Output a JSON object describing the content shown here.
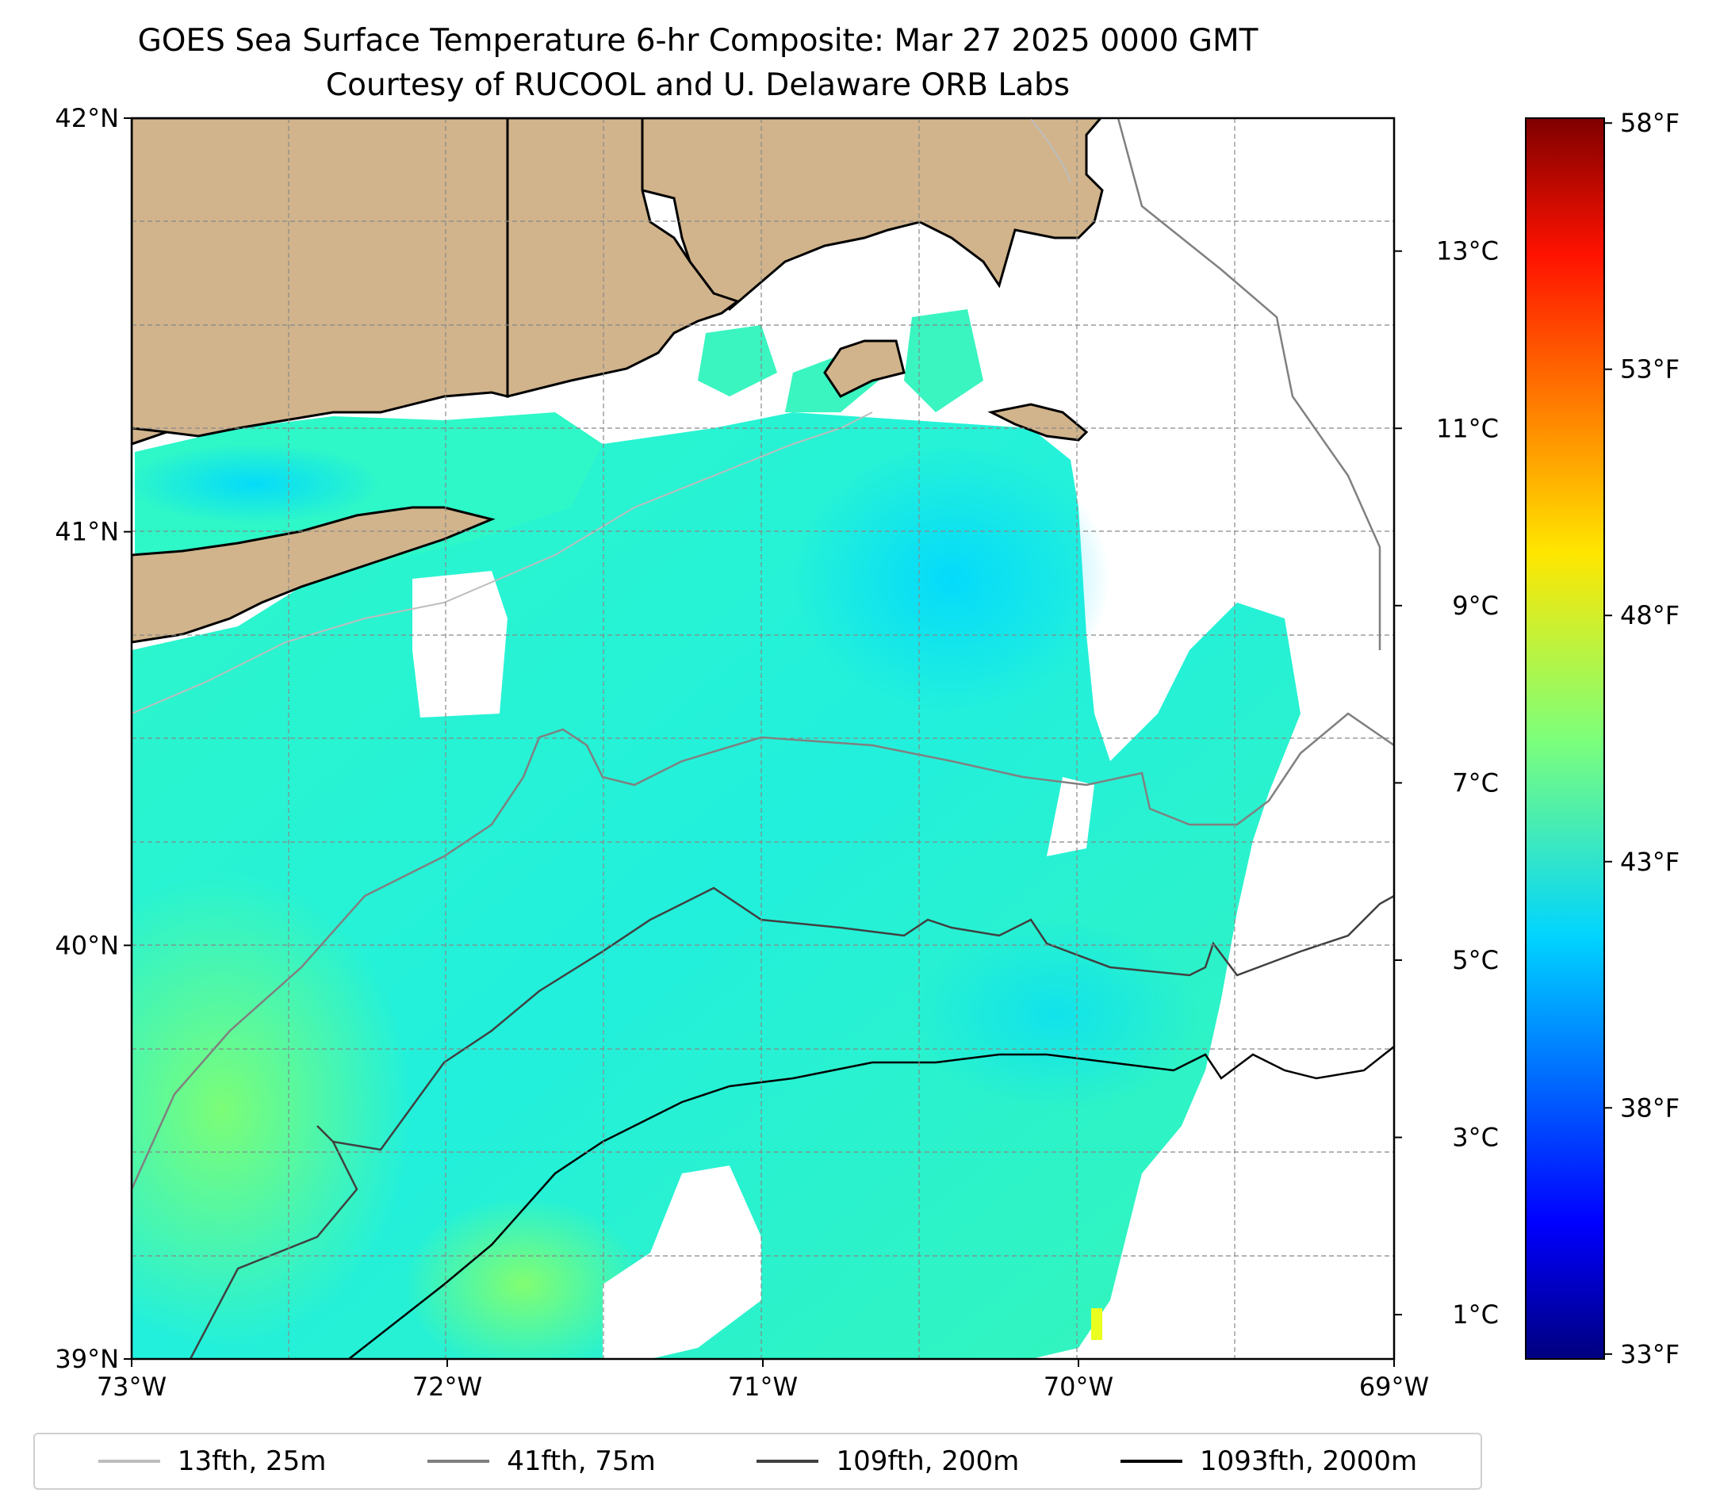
{
  "title": {
    "line1": "GOES Sea Surface Temperature 6-hr Composite: Mar 27 2025 0000 GMT",
    "line2": "Courtesy of RUCOOL and U. Delaware ORB Labs"
  },
  "map": {
    "lon_range": [
      -73,
      -69
    ],
    "lat_range": [
      39,
      42
    ],
    "lon_ticks": [
      {
        "value": -73,
        "label": "73°W"
      },
      {
        "value": -72,
        "label": "72°W"
      },
      {
        "value": -71,
        "label": "71°W"
      },
      {
        "value": -70,
        "label": "70°W"
      },
      {
        "value": -69,
        "label": "69°W"
      }
    ],
    "lat_ticks": [
      {
        "value": 42,
        "label": "42°N"
      },
      {
        "value": 41,
        "label": "41°N"
      },
      {
        "value": 40,
        "label": "40°N"
      },
      {
        "value": 39,
        "label": "39°N"
      }
    ],
    "grid": "dashed",
    "land_color": "#d1b48c",
    "no_data_color": "#ffffff"
  },
  "colorbar": {
    "colormap": "jet",
    "celsius_range": [
      0.5,
      14.5
    ],
    "celsius_ticks": [
      {
        "value": 1,
        "label": "1°C"
      },
      {
        "value": 3,
        "label": "3°C"
      },
      {
        "value": 5,
        "label": "5°C"
      },
      {
        "value": 7,
        "label": "7°C"
      },
      {
        "value": 9,
        "label": "9°C"
      },
      {
        "value": 11,
        "label": "11°C"
      },
      {
        "value": 13,
        "label": "13°C"
      }
    ],
    "fahrenheit_ticks": [
      {
        "value": 33,
        "label": "33°F"
      },
      {
        "value": 38,
        "label": "38°F"
      },
      {
        "value": 43,
        "label": "43°F"
      },
      {
        "value": 48,
        "label": "48°F"
      },
      {
        "value": 53,
        "label": "53°F"
      },
      {
        "value": 58,
        "label": "58°F"
      }
    ]
  },
  "legend": [
    {
      "label": "13fth, 25m",
      "color": "#bdbdbd"
    },
    {
      "label": "41fth, 75m",
      "color": "#808080"
    },
    {
      "label": "109fth, 200m",
      "color": "#404040"
    },
    {
      "label": "1093fth, 2000m",
      "color": "#000000"
    }
  ]
}
